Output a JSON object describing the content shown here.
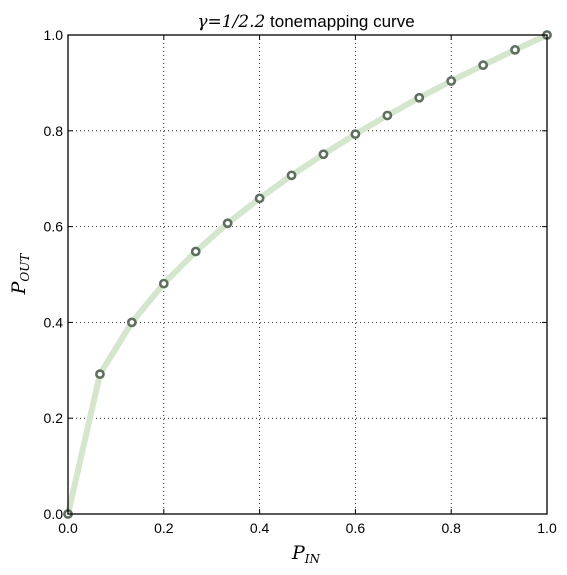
{
  "chart_data": {
    "type": "line",
    "title_math": "γ=1/2.2",
    "title_text": " tonemapping curve",
    "xlabel": "P",
    "xlabel_sub": "IN",
    "ylabel": "P",
    "ylabel_sub": "OUT",
    "xlim": [
      0.0,
      1.0
    ],
    "ylim": [
      0.0,
      1.0
    ],
    "xticks": [
      0.0,
      0.2,
      0.4,
      0.6,
      0.8,
      1.0
    ],
    "yticks": [
      0.0,
      0.2,
      0.4,
      0.6,
      0.8,
      1.0
    ],
    "xtick_labels": [
      "0.0",
      "0.2",
      "0.4",
      "0.6",
      "0.8",
      "1.0"
    ],
    "ytick_labels": [
      "0.0",
      "0.2",
      "0.4",
      "0.6",
      "0.8",
      "1.0"
    ],
    "grid": true,
    "series": [
      {
        "x": [
          0.0,
          0.0667,
          0.1333,
          0.2,
          0.2667,
          0.3333,
          0.4,
          0.4667,
          0.5333,
          0.6,
          0.6667,
          0.7333,
          0.8,
          0.8667,
          0.9333,
          1.0
        ],
        "y": [
          0.0,
          0.292,
          0.4,
          0.481,
          0.548,
          0.607,
          0.659,
          0.707,
          0.751,
          0.793,
          0.832,
          0.869,
          0.904,
          0.937,
          0.969,
          1.0
        ],
        "line_color": "#d4e6cc",
        "marker_edge_color": "#5f6f5f",
        "marker_face_color": "#ffffff"
      }
    ]
  }
}
